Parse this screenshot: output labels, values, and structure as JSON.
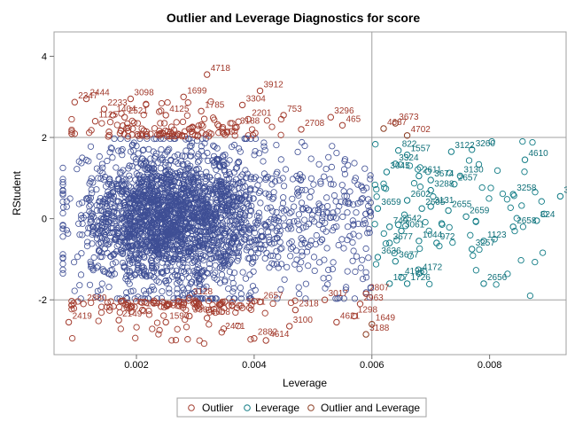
{
  "chart_data": {
    "type": "scatter",
    "title": "Outlier and Leverage Diagnostics for score",
    "xlabel": "Leverage",
    "ylabel": "RStudent",
    "xlim": [
      0.0006,
      0.0093
    ],
    "ylim": [
      -3.35,
      4.6
    ],
    "xticks": [
      0.002,
      0.004,
      0.006,
      0.008
    ],
    "xtick_labels": [
      "0.002",
      "0.004",
      "0.006",
      "0.008"
    ],
    "yticks": [
      -2,
      0,
      2,
      4
    ],
    "ytick_labels": [
      "-2",
      "0",
      "2",
      "4"
    ],
    "reference_lines": {
      "x": 0.006,
      "y": [
        -2,
        2
      ]
    },
    "grid": false,
    "legend_position": "bottom",
    "colors": {
      "normal": "#3f4f95",
      "outlier": "#a23a2c",
      "leverage": "#0e7a84",
      "outlier_and_leverage": "#8a3a1f",
      "outlier_text": "#a23a2c",
      "leverage_text": "#0e6f78"
    },
    "series": [
      {
        "name": "Outlier",
        "points": [
          [
            0.00095,
            2.87,
            "2347"
          ],
          [
            0.00115,
            2.95,
            "2444"
          ],
          [
            0.00145,
            2.7,
            "2233"
          ],
          [
            0.0016,
            2.55,
            "1404"
          ],
          [
            0.0019,
            2.95,
            "3098"
          ],
          [
            0.0028,
            3.0,
            "1699"
          ],
          [
            0.0032,
            3.55,
            "4718"
          ],
          [
            0.0031,
            2.65,
            "1785"
          ],
          [
            0.0038,
            2.8,
            "3304"
          ],
          [
            0.0041,
            3.15,
            "3912"
          ],
          [
            0.0045,
            2.55,
            "753"
          ],
          [
            0.0053,
            2.5,
            "3296"
          ],
          [
            0.0055,
            2.3,
            "465"
          ],
          [
            0.0025,
            2.55,
            "4125"
          ],
          [
            0.0039,
            2.45,
            "2201"
          ],
          [
            0.0037,
            2.25,
            "3188"
          ],
          [
            0.0048,
            2.2,
            "2708"
          ],
          [
            0.0018,
            2.5,
            "2521"
          ],
          [
            0.0013,
            2.4,
            "1125"
          ],
          [
            0.00085,
            -2.55,
            "2419"
          ],
          [
            0.0011,
            -2.1,
            "2880"
          ],
          [
            0.0017,
            -2.5,
            "2149"
          ],
          [
            0.0025,
            -2.55,
            "1590"
          ],
          [
            0.0029,
            -2.4,
            "3366"
          ],
          [
            0.0032,
            -2.45,
            "4608"
          ],
          [
            0.0038,
            -2.2,
            "3571"
          ],
          [
            0.0041,
            -2.05,
            "2657"
          ],
          [
            0.0047,
            -2.25,
            "2318"
          ],
          [
            0.0052,
            -2.0,
            "3017"
          ],
          [
            0.0058,
            -2.1,
            "2963"
          ],
          [
            0.0059,
            -1.85,
            "2807"
          ],
          [
            0.0057,
            -2.4,
            "1298"
          ],
          [
            0.0054,
            -2.55,
            "4621"
          ],
          [
            0.0046,
            -2.65,
            "3100"
          ],
          [
            0.004,
            -2.95,
            "2882"
          ],
          [
            0.0042,
            -3.0,
            "4614"
          ],
          [
            0.0021,
            -2.25,
            "1596"
          ],
          [
            0.00345,
            -2.8,
            "2471"
          ],
          [
            0.0029,
            -1.95,
            "3128"
          ]
        ]
      },
      {
        "name": "Leverage",
        "points": [
          [
            0.00645,
            1.68,
            "822"
          ],
          [
            0.0066,
            1.57,
            "1557"
          ],
          [
            0.0064,
            1.35,
            "3324"
          ],
          [
            0.00625,
            1.15,
            "3045"
          ],
          [
            0.0068,
            1.05,
            "2611"
          ],
          [
            0.007,
            0.95,
            "3674"
          ],
          [
            0.0075,
            1.05,
            "3130"
          ],
          [
            0.00735,
            1.65,
            "3122"
          ],
          [
            0.0077,
            1.7,
            "3260"
          ],
          [
            0.0086,
            1.45,
            "4610"
          ],
          [
            0.0084,
            0.6,
            "3258"
          ],
          [
            0.0092,
            0.55,
            "3674"
          ],
          [
            0.0088,
            -0.05,
            "824"
          ],
          [
            0.007,
            0.7,
            "3288"
          ],
          [
            0.0074,
            0.85,
            "2657"
          ],
          [
            0.0066,
            0.45,
            "2602"
          ],
          [
            0.00685,
            0.25,
            "2605"
          ],
          [
            0.007,
            0.3,
            "3131"
          ],
          [
            0.0073,
            0.2,
            "2655"
          ],
          [
            0.0076,
            0.05,
            "2659"
          ],
          [
            0.0084,
            -0.2,
            "2658"
          ],
          [
            0.0079,
            -0.55,
            "1123"
          ],
          [
            0.0077,
            -0.75,
            "3257"
          ],
          [
            0.0068,
            -0.55,
            "1044"
          ],
          [
            0.0071,
            -0.6,
            "972"
          ],
          [
            0.00645,
            -0.15,
            "2542"
          ],
          [
            0.0065,
            -0.3,
            "3061"
          ],
          [
            0.0063,
            -0.2,
            "749"
          ],
          [
            0.0063,
            -0.6,
            "3677"
          ],
          [
            0.0064,
            -1.05,
            "3677"
          ],
          [
            0.0065,
            -1.45,
            "4195"
          ],
          [
            0.0068,
            -1.35,
            "4172"
          ],
          [
            0.0066,
            -1.6,
            "1726"
          ],
          [
            0.0063,
            -1.6,
            "177"
          ],
          [
            0.0079,
            -1.6,
            "2656"
          ],
          [
            0.0061,
            -0.95,
            "3636"
          ],
          [
            0.0061,
            0.25,
            "3659"
          ]
        ]
      },
      {
        "name": "Outlier and Leverage",
        "points": [
          [
            0.0064,
            2.35,
            "3673"
          ],
          [
            0.0062,
            2.22,
            "4687"
          ],
          [
            0.0066,
            2.05,
            "4702"
          ],
          [
            0.006,
            -2.6,
            "1649"
          ],
          [
            0.0059,
            -2.85,
            "3188"
          ]
        ]
      }
    ]
  },
  "legend": {
    "items": [
      {
        "label": "Outlier",
        "color": "#a23a2c"
      },
      {
        "label": "Leverage",
        "color": "#0e7a84"
      },
      {
        "label": "Outlier and Leverage",
        "color": "#8a3a1f"
      }
    ]
  }
}
